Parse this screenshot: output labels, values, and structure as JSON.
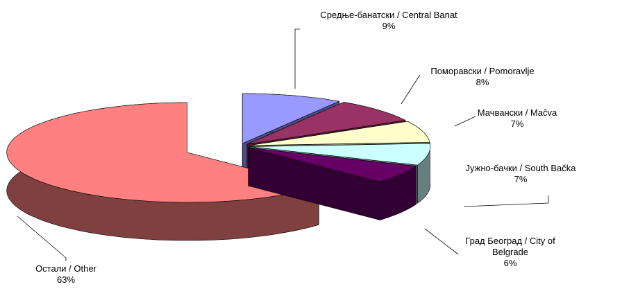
{
  "chart_data": {
    "type": "pie3d",
    "categories": [
      "Средње-банатски / Central Banat",
      "Поморавски / Pomoravlje",
      "Мачвански / Mačva",
      "Јужно-бачки / South Bačka",
      "Град Београд / City of Belgrade",
      "Остали / Other"
    ],
    "values": [
      9,
      8,
      7,
      7,
      6,
      63
    ],
    "value_labels": [
      "9%",
      "8%",
      "7%",
      "7%",
      "6%",
      "63%"
    ],
    "colors": [
      "#9999ff",
      "#993366",
      "#ffffcc",
      "#ccffff",
      "#660066",
      "#ff8080"
    ]
  }
}
